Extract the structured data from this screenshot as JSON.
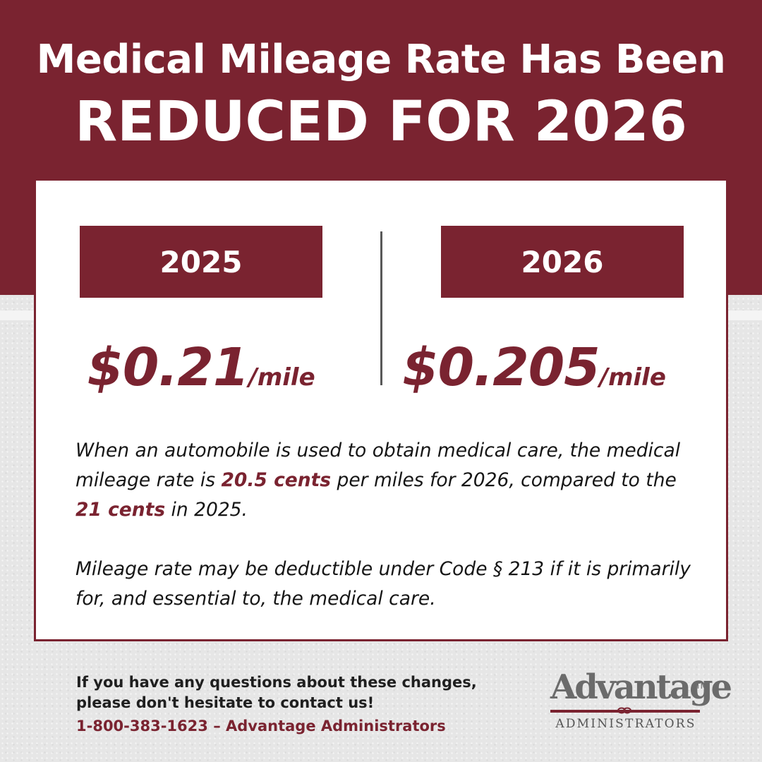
{
  "header": {
    "line1": "Medical Mileage Rate Has Been",
    "line2": "REDUCED FOR 2026"
  },
  "comparison": {
    "left": {
      "year": "2025",
      "amount": "$0.21",
      "unit": "/mile"
    },
    "right": {
      "year": "2026",
      "amount": "$0.205",
      "unit": "/mile"
    }
  },
  "body": {
    "p1_part1": "When an automobile is used to obtain medical care, the medical mileage rate is ",
    "p1_hl1": "20.5 cents",
    "p1_part2": " per miles for 2026, compared to the ",
    "p1_hl2": "21 cents",
    "p1_part3": " in 2025.",
    "p2": "Mileage rate may be deductible under Code § 213 if it is primarily for, and essential to, the medical care."
  },
  "footer": {
    "question": "If you have any questions about these changes, please don't hesitate to contact us!",
    "contact": "1-800-383-1623 – Advantage Administrators"
  },
  "logo": {
    "word": "Advantage",
    "tm": "TM",
    "sub": "ADMINISTRATORS"
  },
  "colors": {
    "brand": "#7a2330",
    "background": "#e6e6e6",
    "text": "#161616"
  }
}
